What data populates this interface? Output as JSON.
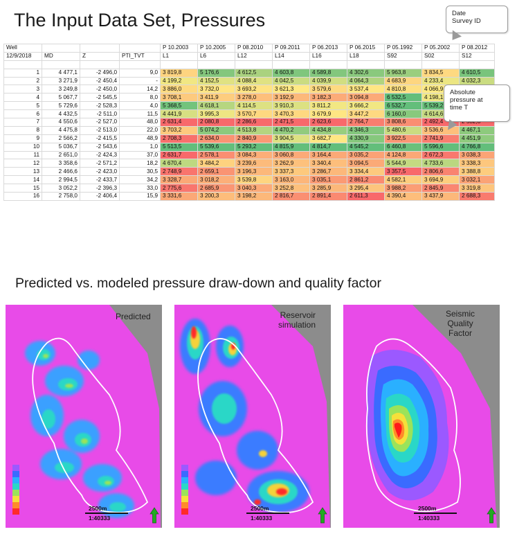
{
  "title": "The Input Data Set, Pressures",
  "callouts": {
    "date_survey": [
      "Date",
      "Survey ID"
    ],
    "absolute_pressure": [
      "Absolute",
      "pressure at",
      "time T"
    ]
  },
  "table": {
    "row1": [
      "Well",
      "",
      "",
      "",
      "P 10.2003",
      "P 10.2005",
      "P 08.2010",
      "P 09.2011",
      "P 06.2013",
      "P 06.2015",
      "P 05.1992",
      "P 05.2002",
      "P 08.2012"
    ],
    "row2": [
      "12/9/2018",
      "MD",
      "Z",
      "PTI_TVT",
      "L1",
      "L6",
      "L12",
      "L14",
      "L16",
      "L18",
      "S92",
      "S02",
      "S12"
    ],
    "rows": [
      {
        "id": "1",
        "md": "4 477,1",
        "z": "-2 496,0",
        "pti": "9,0",
        "p": [
          "3 819,8",
          "5 176,6",
          "4 612,5",
          "4 603,8",
          "4 589,8",
          "4 302,6",
          "5 963,8",
          "3 834,5",
          "4 610,5"
        ]
      },
      {
        "id": "2",
        "md": "3 271,9",
        "z": "-2 450,4",
        "pti": "-",
        "p": [
          "4 199,2",
          "4 152,5",
          "4 088,4",
          "4 042,5",
          "4 039,9",
          "4 064,3",
          "4 683,9",
          "4 233,4",
          "4 032,3"
        ]
      },
      {
        "id": "3",
        "md": "3 249,8",
        "z": "-2 450,0",
        "pti": "14,2",
        "p": [
          "3 886,0",
          "3 732,0",
          "3 693,2",
          "3 621,3",
          "3 579,6",
          "3 537,4",
          "4 810,8",
          "4 066,9",
          "3 599,0"
        ]
      },
      {
        "id": "4",
        "md": "5 067,7",
        "z": "-2 545,5",
        "pti": "8,0",
        "p": [
          "3 708,1",
          "3 411,9",
          "3 278,0",
          "3 192,9",
          "3 182,3",
          "3 094,8",
          "6 532,5",
          "4 198,1",
          "3 166,5"
        ]
      },
      {
        "id": "5",
        "md": "5 729,6",
        "z": "-2 528,3",
        "pti": "4,0",
        "p": [
          "5 368,5",
          "4 618,1",
          "4 114,5",
          "3 910,3",
          "3 811,2",
          "3 666,2",
          "6 532,7",
          "5 539,2",
          "3 842"
        ]
      },
      {
        "id": "6",
        "md": "4 432,5",
        "z": "-2 511,0",
        "pti": "11,5",
        "p": [
          "4 441,9",
          "3 995,3",
          "3 570,7",
          "3 470,3",
          "3 679,9",
          "3 447,2",
          "6 160,0",
          "4 614,6",
          "3 565,9"
        ]
      },
      {
        "id": "7",
        "md": "4 550,6",
        "z": "-2 527,0",
        "pti": "48,0",
        "p": [
          "2 631,4",
          "2 080,8",
          "2 286,6",
          "2 471,5",
          "2 623,6",
          "2 764,7",
          "3 808,6",
          "2 492,4",
          "2 532,8"
        ]
      },
      {
        "id": "8",
        "md": "4 475,8",
        "z": "-2 513,0",
        "pti": "22,0",
        "p": [
          "3 703,2",
          "5 074,2",
          "4 513,8",
          "4 470,2",
          "4 434,8",
          "4 346,3",
          "5 480,6",
          "3 536,6",
          "4 467,1"
        ]
      },
      {
        "id": "9",
        "md": "2 566,2",
        "z": "-2 415,5",
        "pti": "48,9",
        "p": [
          "2 708,3",
          "2 634,0",
          "2 840,9",
          "3 904,5",
          "3 682,7",
          "4 330,9",
          "3 922,5",
          "2 741,9",
          "4 451,9"
        ]
      },
      {
        "id": "10",
        "md": "5 036,7",
        "z": "-2 543,6",
        "pti": "1,0",
        "p": [
          "5 513,5",
          "5 539,6",
          "5 293,2",
          "4 815,9",
          "4 814,7",
          "4 545,2",
          "6 460,8",
          "5 596,6",
          "4 766,8"
        ]
      },
      {
        "id": "11",
        "md": "2 651,0",
        "z": "-2 424,3",
        "pti": "37,0",
        "p": [
          "2 631,7",
          "2 578,1",
          "3 084,3",
          "3 060,8",
          "3 164,4",
          "3 035,2",
          "4 124,8",
          "2 672,3",
          "3 038,3"
        ]
      },
      {
        "id": "12",
        "md": "3 358,6",
        "z": "-2 571,2",
        "pti": "18,2",
        "p": [
          "4 670,4",
          "3 484,2",
          "3 239,6",
          "3 262,9",
          "3 340,4",
          "3 094,5",
          "5 544,9",
          "4 733,6",
          "3 338,3"
        ]
      },
      {
        "id": "13",
        "md": "2 466,6",
        "z": "-2 423,0",
        "pti": "30,5",
        "p": [
          "2 748,9",
          "2 659,1",
          "3 196,3",
          "3 337,3",
          "3 286,7",
          "3 334,4",
          "3 357,5",
          "2 806,6",
          "3 388,8"
        ]
      },
      {
        "id": "14",
        "md": "2 994,5",
        "z": "-2 433,7",
        "pti": "34,2",
        "p": [
          "3 328,7",
          "3 018,2",
          "3 539,8",
          "3 163,0",
          "3 035,1",
          "2 861,2",
          "4 582,1",
          "3 694,9",
          "3 032,1"
        ]
      },
      {
        "id": "15",
        "md": "3 052,2",
        "z": "-2 396,3",
        "pti": "33,0",
        "p": [
          "2 775,6",
          "2 685,9",
          "3 040,3",
          "3 252,8",
          "3 285,9",
          "3 295,4",
          "3 988,2",
          "2 845,9",
          "3 319,8"
        ]
      },
      {
        "id": "16",
        "md": "2 758,0",
        "z": "-2 406,4",
        "pti": "15,9",
        "p": [
          "3 331,6",
          "3 200,3",
          "3 198,2",
          "2 816,7",
          "2 891,4",
          "2 611,3",
          "4 390,4",
          "3 437,9",
          "2 688,3"
        ]
      }
    ]
  },
  "subtitle": "Predicted vs. modeled pressure draw-down and quality factor",
  "maps": [
    {
      "label": [
        "Predicted"
      ],
      "scale": "2500m",
      "ratio": "1:40333"
    },
    {
      "label": [
        "Reservoir",
        "simulation"
      ],
      "scale": "2500m",
      "ratio": "1:40333"
    },
    {
      "label": [
        "Seismic",
        "Quality",
        "Factor"
      ],
      "scale": "2500m",
      "ratio": "1:40333"
    }
  ],
  "colors": {
    "heat_low": "#f8696b",
    "heat_mid": "#ffeb84",
    "heat_high": "#63be7b",
    "map_background": "#8c8c8c",
    "map_magenta": "#ee44ee",
    "north_arrow": "#22aa22"
  }
}
